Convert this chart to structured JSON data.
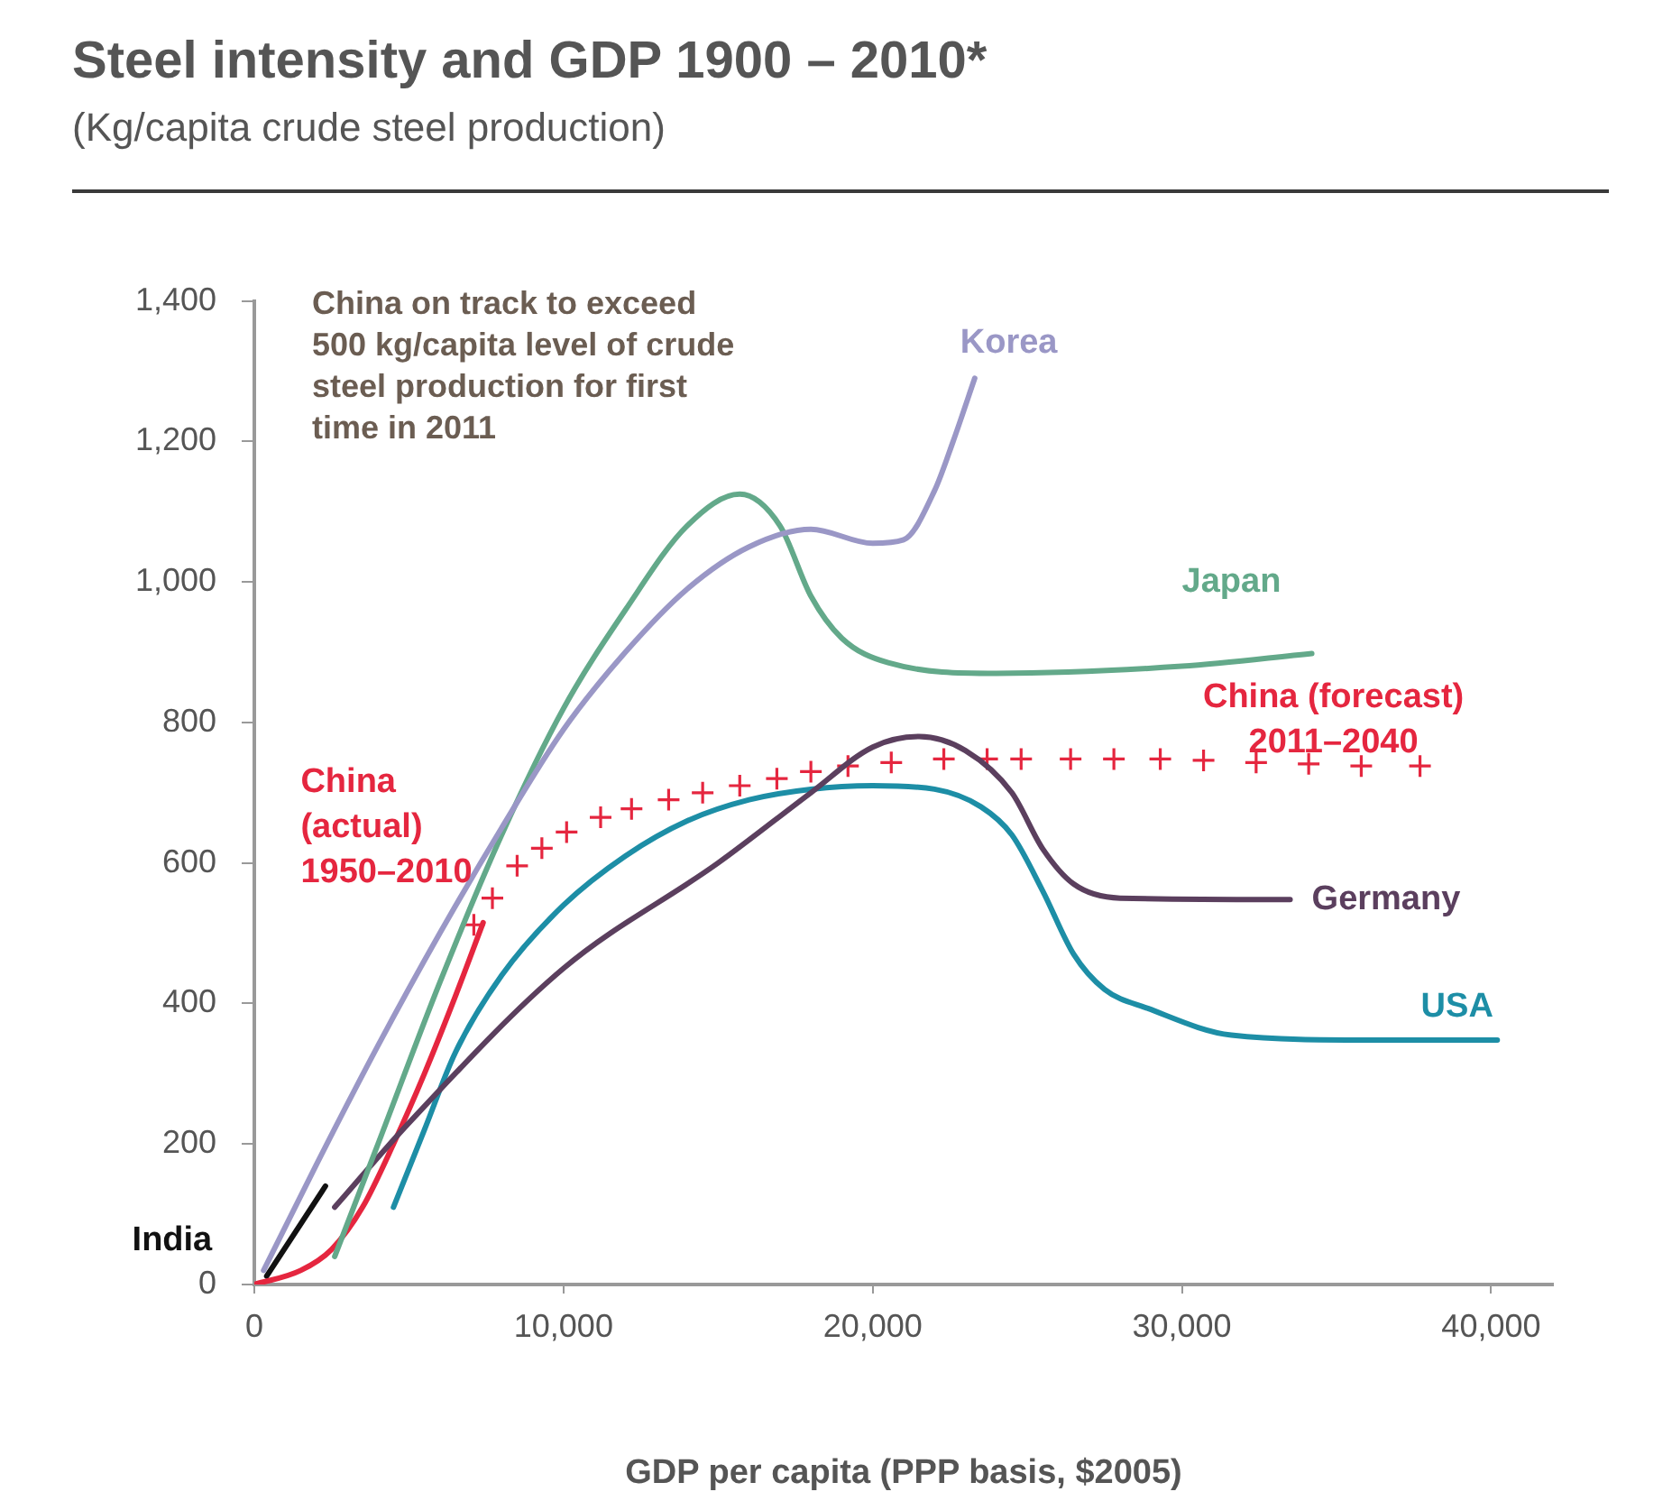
{
  "chart_data": {
    "type": "line",
    "title": "Steel intensity and GDP 1900 – 2010*",
    "subtitle": "(Kg/capita crude steel production)",
    "xlabel": "GDP per capita (PPP basis, $2005)",
    "annotations": [
      "China on track to exceed 500 kg/capita level of crude steel production for first time in 2011"
    ],
    "xlim": [
      0,
      42000
    ],
    "xticks": [
      0,
      {
        "value": 10000,
        "label": "10,000"
      },
      {
        "value": 20000,
        "label": "20,000"
      },
      {
        "value": 30000,
        "label": "30,000"
      },
      {
        "value": 40000,
        "label": "40,000"
      }
    ],
    "ylim": [
      0,
      1400
    ],
    "yticks": [
      0,
      200,
      400,
      600,
      800,
      {
        "value": 1000,
        "label": "1,000"
      },
      {
        "value": 1200,
        "label": "1,200"
      },
      {
        "value": 1400,
        "label": "1,400"
      }
    ],
    "marker": "none",
    "line_style": "solid",
    "series": [
      {
        "name": "Korea",
        "color": "#9a97c6",
        "x": [
          300,
          2000,
          4000,
          6000,
          8000,
          10000,
          12000,
          14000,
          16000,
          18000,
          20000,
          21000,
          22000,
          22600,
          23300
        ],
        "values": [
          20,
          170,
          340,
          500,
          650,
          790,
          900,
          990,
          1050,
          1075,
          1055,
          1060,
          1130,
          1200,
          1290
        ]
      },
      {
        "name": "Japan",
        "color": "#63a98a",
        "x": [
          2600,
          4000,
          6000,
          8000,
          10000,
          12000,
          14000,
          15700,
          17000,
          18000,
          19000,
          20500,
          24000,
          30000,
          34200
        ],
        "values": [
          40,
          200,
          430,
          640,
          820,
          960,
          1080,
          1125,
          1080,
          980,
          920,
          885,
          870,
          880,
          898
        ]
      },
      {
        "name": "Germany",
        "color": "#5b3f5e",
        "x": [
          2600,
          5000,
          10000,
          15000,
          18000,
          20000,
          21500,
          23000,
          24500,
          25500,
          26500,
          28000,
          33500
        ],
        "values": [
          110,
          230,
          450,
          600,
          700,
          765,
          780,
          760,
          700,
          620,
          570,
          550,
          548
        ]
      },
      {
        "name": "USA",
        "color": "#1d8ea6",
        "x": [
          4500,
          5500,
          6500,
          8000,
          10000,
          12000,
          14000,
          16000,
          18000,
          20000,
          22000,
          23500,
          24500,
          25500,
          26500,
          27500,
          28900,
          31600,
          36000,
          40200
        ],
        "values": [
          110,
          220,
          330,
          440,
          540,
          610,
          660,
          690,
          705,
          710,
          705,
          680,
          640,
          560,
          470,
          420,
          393,
          355,
          348,
          348
        ]
      },
      {
        "name": "China (actual) 1950–2010",
        "color": "#e5263f",
        "x": [
          0,
          1500,
          2500,
          3500,
          4500,
          5500,
          6500,
          7400
        ],
        "values": [
          0,
          20,
          50,
          110,
          200,
          300,
          410,
          515
        ]
      },
      {
        "name": "China (forecast) 2011–2040",
        "color": "#e5263f",
        "type": "scatter",
        "marker": "cross",
        "x": [
          7100,
          7700,
          8500,
          9300,
          10100,
          11200,
          12200,
          13400,
          14500,
          15700,
          16900,
          18000,
          19200,
          20600,
          22300,
          23700,
          24800,
          26400,
          27800,
          29300,
          30700,
          32400,
          34100,
          35800,
          37700
        ],
        "values": [
          512,
          550,
          596,
          621,
          644,
          665,
          677,
          690,
          700,
          710,
          720,
          730,
          738,
          743,
          748,
          748,
          748,
          748,
          748,
          748,
          746,
          743,
          741,
          738,
          738
        ]
      },
      {
        "name": "India",
        "color": "#111111",
        "x": [
          400,
          2300
        ],
        "values": [
          12,
          140
        ]
      }
    ]
  }
}
